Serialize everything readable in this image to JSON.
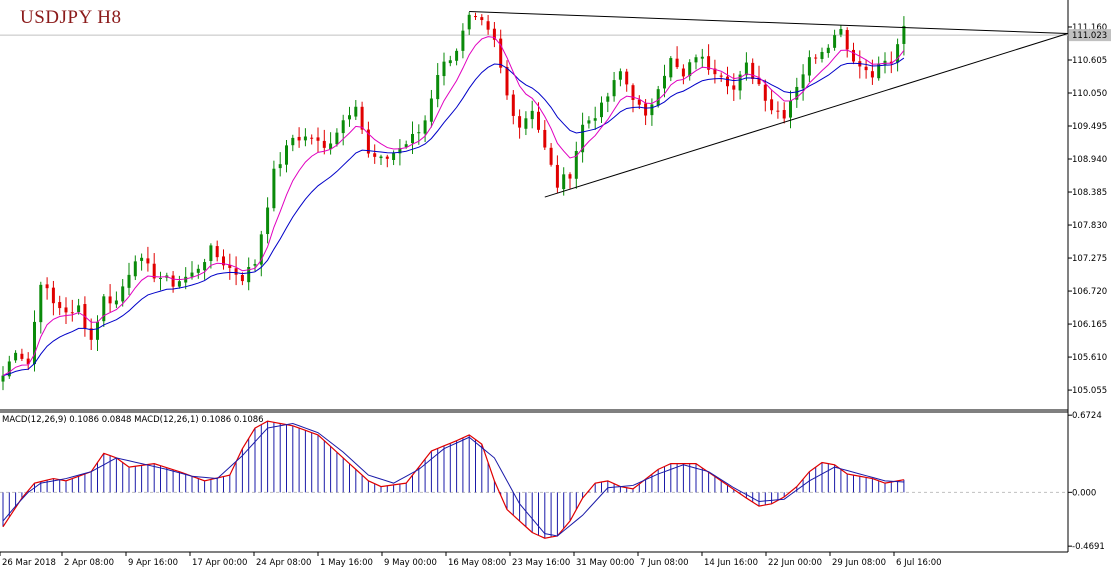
{
  "chart_title": "USDJPY H8",
  "macd_label": "MACD(12,26,9) 0.1086 0.0848 MACD(12,26,1) 0.1086 0.1086",
  "colors": {
    "bull": "#0a8a0a",
    "bear": "#e00000",
    "ma_fast": "#e000c0",
    "ma_slow": "#0000c8",
    "macd_hist": "#1a1aa8",
    "macd_signal": "#e00000",
    "trendline": "#000000",
    "price_line": "#c0c0c0",
    "price_tag_bg": "#c0c0c0"
  },
  "chart_data": [
    {
      "type": "candlestick",
      "title": "USDJPY H8",
      "indicators": [
        "moving average (fast)",
        "moving average (slow)",
        "triangle trendlines"
      ],
      "y_ticks": [
        "111.160",
        "110.605",
        "110.050",
        "109.495",
        "108.940",
        "108.385",
        "107.830",
        "107.275",
        "106.720",
        "106.165",
        "105.610",
        "105.055"
      ],
      "ylim": [
        104.72,
        111.58
      ],
      "current_price": "111.023",
      "x_ticks": [
        "26 Mar 2018",
        "2 Apr 08:00",
        "9 Apr 16:00",
        "17 Apr 00:00",
        "24 Apr 08:00",
        "1 May 16:00",
        "9 May 00:00",
        "16 May 08:00",
        "23 May 16:00",
        "31 May 00:00",
        "7 Jun 08:00",
        "14 Jun 16:00",
        "22 Jun 00:00",
        "29 Jun 08:00",
        "6 Jul 16:00"
      ],
      "close_path": [
        [
          0,
          105.3
        ],
        [
          2,
          105.75
        ],
        [
          4,
          105.5
        ],
        [
          6,
          106.9
        ],
        [
          8,
          106.5
        ],
        [
          10,
          106.4
        ],
        [
          11,
          106.3
        ],
        [
          12,
          106.45
        ],
        [
          14,
          105.9
        ],
        [
          16,
          106.6
        ],
        [
          18,
          106.55
        ],
        [
          21,
          107.3
        ],
        [
          24,
          107.0
        ],
        [
          27,
          106.85
        ],
        [
          30,
          107.0
        ],
        [
          33,
          107.4
        ],
        [
          36,
          107.1
        ],
        [
          38,
          106.95
        ],
        [
          40,
          107.2
        ],
        [
          43,
          108.7
        ],
        [
          46,
          109.3
        ],
        [
          49,
          109.3
        ],
        [
          51,
          109.1
        ],
        [
          54,
          109.6
        ],
        [
          56,
          109.9
        ],
        [
          58,
          109.0
        ],
        [
          60,
          108.9
        ],
        [
          62,
          109.05
        ],
        [
          64,
          109.2
        ],
        [
          66,
          109.4
        ],
        [
          67,
          109.6
        ],
        [
          69,
          110.4
        ],
        [
          72,
          110.8
        ],
        [
          74,
          111.3
        ],
        [
          76,
          111.2
        ],
        [
          78,
          110.9
        ],
        [
          80,
          110.0
        ],
        [
          82,
          109.5
        ],
        [
          84,
          109.8
        ],
        [
          86,
          109.1
        ],
        [
          88,
          108.5
        ],
        [
          90,
          108.7
        ],
        [
          92,
          109.5
        ],
        [
          95,
          109.8
        ],
        [
          98,
          110.4
        ],
        [
          100,
          110.0
        ],
        [
          102,
          109.6
        ],
        [
          104,
          110.2
        ],
        [
          106,
          110.6
        ],
        [
          108,
          110.3
        ],
        [
          110,
          110.7
        ],
        [
          112,
          110.5
        ],
        [
          114,
          110.4
        ],
        [
          116,
          110.1
        ],
        [
          118,
          110.5
        ],
        [
          120,
          110.2
        ],
        [
          121,
          110.0
        ],
        [
          122,
          109.8
        ],
        [
          124,
          109.7
        ],
        [
          126,
          110.2
        ],
        [
          128,
          110.6
        ],
        [
          130,
          110.8
        ],
        [
          132,
          111.0
        ],
        [
          133,
          111.2
        ],
        [
          134,
          110.8
        ],
        [
          136,
          110.5
        ],
        [
          138,
          110.4
        ],
        [
          140,
          110.6
        ],
        [
          141,
          110.5
        ],
        [
          142,
          110.9
        ],
        [
          143,
          111.1
        ]
      ],
      "trendlines": [
        {
          "from": [
            74,
            111.42
          ],
          "to": [
            169,
            111.05
          ]
        },
        {
          "from": [
            86,
            108.3
          ],
          "to": [
            169,
            111.05
          ]
        }
      ]
    },
    {
      "type": "macd",
      "title": "MACD(12,26,9) 0.1086 0.0848 MACD(12,26,1) 0.1086 0.1086",
      "y_ticks": [
        "0.6724",
        "0.000",
        "-0.4691"
      ],
      "ylim": [
        -0.52,
        0.7
      ],
      "series": [
        {
          "name": "MACD(12,26,9) histogram",
          "values_path": [
            [
              0,
              -0.3
            ],
            [
              3,
              -0.05
            ],
            [
              5,
              0.08
            ],
            [
              8,
              0.12
            ],
            [
              10,
              0.1
            ],
            [
              14,
              0.18
            ],
            [
              16,
              0.34
            ],
            [
              18,
              0.3
            ],
            [
              20,
              0.22
            ],
            [
              24,
              0.25
            ],
            [
              28,
              0.18
            ],
            [
              32,
              0.1
            ],
            [
              36,
              0.15
            ],
            [
              38,
              0.38
            ],
            [
              40,
              0.56
            ],
            [
              42,
              0.62
            ],
            [
              46,
              0.58
            ],
            [
              50,
              0.5
            ],
            [
              54,
              0.3
            ],
            [
              58,
              0.1
            ],
            [
              60,
              0.05
            ],
            [
              64,
              0.08
            ],
            [
              66,
              0.22
            ],
            [
              68,
              0.36
            ],
            [
              72,
              0.45
            ],
            [
              74,
              0.5
            ],
            [
              76,
              0.42
            ],
            [
              78,
              0.1
            ],
            [
              80,
              -0.15
            ],
            [
              84,
              -0.35
            ],
            [
              86,
              -0.4
            ],
            [
              88,
              -0.38
            ],
            [
              90,
              -0.25
            ],
            [
              92,
              -0.05
            ],
            [
              94,
              0.08
            ],
            [
              96,
              0.1
            ],
            [
              98,
              0.05
            ],
            [
              100,
              0.03
            ],
            [
              104,
              0.2
            ],
            [
              106,
              0.25
            ],
            [
              110,
              0.25
            ],
            [
              114,
              0.1
            ],
            [
              118,
              -0.05
            ],
            [
              120,
              -0.12
            ],
            [
              122,
              -0.1
            ],
            [
              124,
              -0.04
            ],
            [
              126,
              0.05
            ],
            [
              128,
              0.18
            ],
            [
              130,
              0.26
            ],
            [
              132,
              0.24
            ],
            [
              134,
              0.16
            ],
            [
              138,
              0.12
            ],
            [
              140,
              0.08
            ],
            [
              143,
              0.11
            ]
          ]
        },
        {
          "name": "MACD(12,26,1)",
          "values_path": [
            [
              0,
              -0.25
            ],
            [
              2,
              -0.12
            ],
            [
              4,
              0.0
            ],
            [
              6,
              0.08
            ],
            [
              10,
              0.12
            ],
            [
              14,
              0.18
            ],
            [
              18,
              0.3
            ],
            [
              22,
              0.25
            ],
            [
              26,
              0.2
            ],
            [
              30,
              0.14
            ],
            [
              34,
              0.12
            ],
            [
              38,
              0.32
            ],
            [
              42,
              0.56
            ],
            [
              46,
              0.6
            ],
            [
              50,
              0.52
            ],
            [
              54,
              0.35
            ],
            [
              58,
              0.15
            ],
            [
              62,
              0.08
            ],
            [
              66,
              0.2
            ],
            [
              70,
              0.38
            ],
            [
              74,
              0.48
            ],
            [
              78,
              0.3
            ],
            [
              82,
              -0.1
            ],
            [
              86,
              -0.36
            ],
            [
              88,
              -0.38
            ],
            [
              92,
              -0.2
            ],
            [
              96,
              0.04
            ],
            [
              100,
              0.06
            ],
            [
              104,
              0.16
            ],
            [
              108,
              0.24
            ],
            [
              112,
              0.18
            ],
            [
              116,
              0.04
            ],
            [
              120,
              -0.08
            ],
            [
              124,
              -0.06
            ],
            [
              128,
              0.1
            ],
            [
              132,
              0.22
            ],
            [
              136,
              0.16
            ],
            [
              140,
              0.1
            ],
            [
              143,
              0.09
            ]
          ]
        }
      ]
    }
  ]
}
